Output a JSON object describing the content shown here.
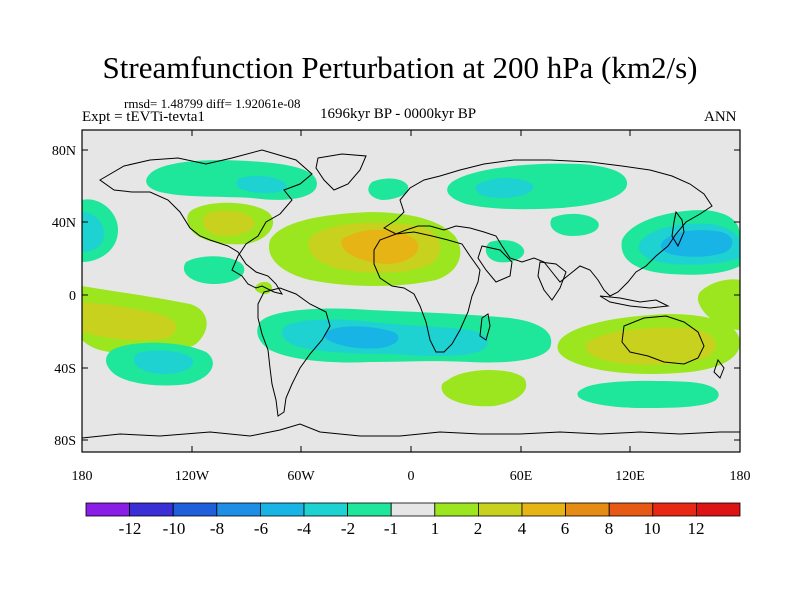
{
  "title": "Streamfunction Perturbation at 200 hPa (km2/s)",
  "stats_line": "rmsd= 1.48799 diff= 1.92061e-08",
  "experiment_label": "Expt = tEVTi-tevta1",
  "period_label": "1696kyr BP - 0000kyr BP",
  "season_label": "ANN",
  "map": {
    "lat_labels": [
      "80N",
      "40N",
      "0",
      "40S",
      "80S"
    ],
    "lon_labels": [
      "180",
      "120W",
      "60W",
      "0",
      "60E",
      "120E",
      "180"
    ]
  },
  "colorbar": {
    "labels": [
      "-12",
      "-10",
      "-8",
      "-6",
      "-4",
      "-2",
      "-1",
      "1",
      "2",
      "4",
      "6",
      "8",
      "10",
      "12"
    ],
    "colors": [
      "#8a1ee6",
      "#3a2ed6",
      "#1f5fdc",
      "#1e8ee6",
      "#19b4e6",
      "#1ed2d2",
      "#1ee69b",
      "#e6e6e6",
      "#9be61e",
      "#c8d21e",
      "#e6b414",
      "#e68c14",
      "#e65a14",
      "#e62814",
      "#dc1414"
    ]
  },
  "colors": {
    "land_outline": "#000000",
    "background": "#e6e6e6"
  }
}
